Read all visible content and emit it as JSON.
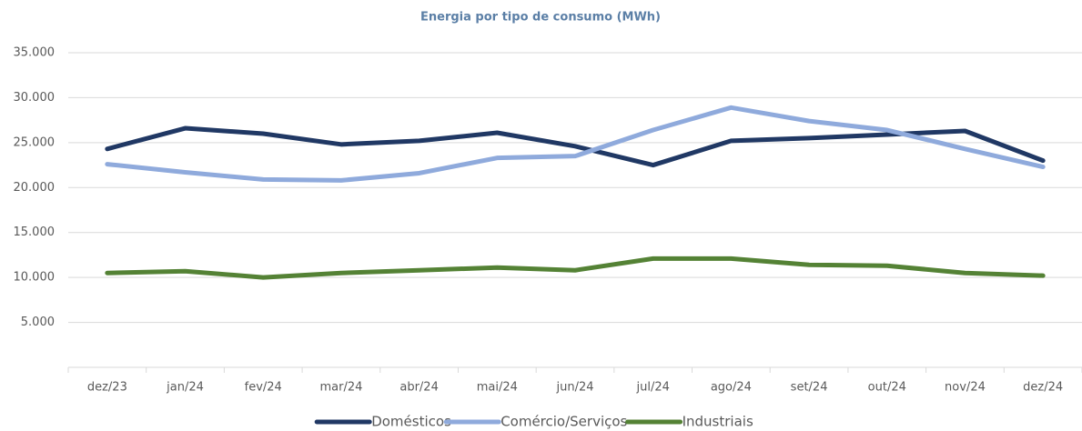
{
  "chart_data": {
    "type": "line",
    "title": "Energia por tipo de consumo (MWh)",
    "categories": [
      "dez/23",
      "jan/24",
      "fev/24",
      "mar/24",
      "abr/24",
      "mai/24",
      "jun/24",
      "jul/24",
      "ago/24",
      "set/24",
      "out/24",
      "nov/24",
      "dez/24"
    ],
    "series": [
      {
        "name": "Domésticos",
        "color": "#203864",
        "values": [
          24300,
          26600,
          26000,
          24800,
          25200,
          26100,
          24600,
          22500,
          25200,
          25500,
          25900,
          26300,
          23000
        ]
      },
      {
        "name": "Comércio/Serviços",
        "color": "#8faadc",
        "values": [
          22600,
          21700,
          20900,
          20800,
          21600,
          23300,
          23500,
          26400,
          28900,
          27400,
          26400,
          24300,
          22300
        ]
      },
      {
        "name": "Industriais",
        "color": "#548235",
        "values": [
          10500,
          10700,
          10000,
          10500,
          10800,
          11100,
          10800,
          12100,
          12100,
          11400,
          11300,
          10500,
          10200
        ]
      }
    ],
    "ylim": [
      0,
      35000
    ],
    "yticks": [
      {
        "value": 5000,
        "label": "5.000"
      },
      {
        "value": 10000,
        "label": "10.000"
      },
      {
        "value": 15000,
        "label": "15.000"
      },
      {
        "value": 20000,
        "label": "20.000"
      },
      {
        "value": 25000,
        "label": "25.000"
      },
      {
        "value": 30000,
        "label": "30.000"
      },
      {
        "value": 35000,
        "label": "35.000"
      }
    ],
    "grid": true,
    "legend": "bottom"
  }
}
